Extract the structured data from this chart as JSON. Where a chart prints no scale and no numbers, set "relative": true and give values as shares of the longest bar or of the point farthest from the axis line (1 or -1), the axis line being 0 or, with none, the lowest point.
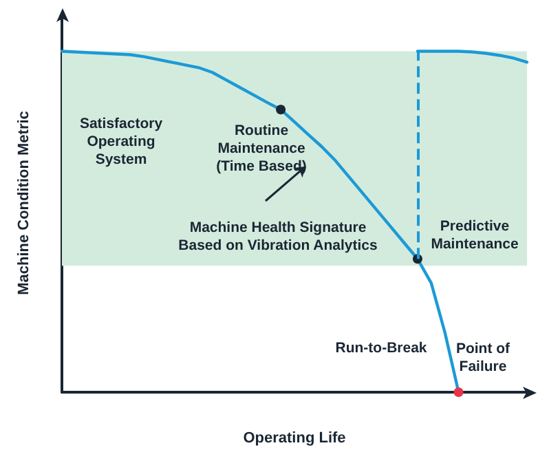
{
  "chart_data": {
    "type": "line",
    "relative": true,
    "xlabel": "Operating Life",
    "ylabel": "Machine Condition Metric",
    "grid": false,
    "categories": [
      null,
      null,
      null,
      null,
      null,
      null,
      null,
      null,
      null,
      null,
      null,
      null,
      null,
      null,
      null,
      null,
      null,
      null,
      null,
      null,
      null,
      null,
      null,
      null,
      null,
      null,
      null,
      null,
      null,
      null,
      null,
      null,
      null,
      null,
      null
    ],
    "series": [
      {
        "color": "#1c9ad6",
        "colors": [
          null,
          null,
          null,
          null,
          null,
          null,
          null,
          null,
          null,
          null,
          null,
          null,
          null,
          null,
          null,
          null,
          "#1a2633",
          null,
          null,
          null,
          null,
          null,
          null,
          null,
          null,
          null,
          "#1a2633",
          null,
          null,
          "#e8344a",
          null,
          null,
          null,
          null,
          null
        ],
        "values": [
          1,
          0.998,
          0.996,
          0.994,
          0.992,
          0.99,
          0.984,
          0.976,
          0.968,
          0.96,
          0.952,
          0.938,
          0.916,
          0.894,
          0.872,
          0.85,
          0.829,
          0.793,
          0.756,
          0.72,
          0.679,
          0.631,
          0.583,
          0.535,
          0.487,
          0.439,
          0.391,
          0.32,
          0.175,
          0,
          null,
          null,
          null,
          null,
          null
        ]
      },
      {
        "color": "#1c9ad6",
        "values": [
          null,
          null,
          null,
          null,
          null,
          null,
          null,
          null,
          null,
          null,
          null,
          null,
          null,
          null,
          null,
          null,
          null,
          null,
          null,
          null,
          null,
          null,
          null,
          null,
          null,
          null,
          1,
          1,
          1,
          1,
          0.998,
          0.994,
          0.988,
          0.98,
          0.968
        ]
      }
    ],
    "bands": [
      {
        "axis": "y",
        "from": 0.371,
        "to": 1,
        "color": "#d3ebdd"
      }
    ],
    "annotations": [
      "Satisfactory\nOperating\nSystem",
      "Routine\nMaintenance\n(Time Based)",
      "Machine Health Signature\nBased on Vibration Analytics",
      "Predictive\nMaintenance",
      "Run-to-Break",
      "Point of\nFailure"
    ]
  }
}
